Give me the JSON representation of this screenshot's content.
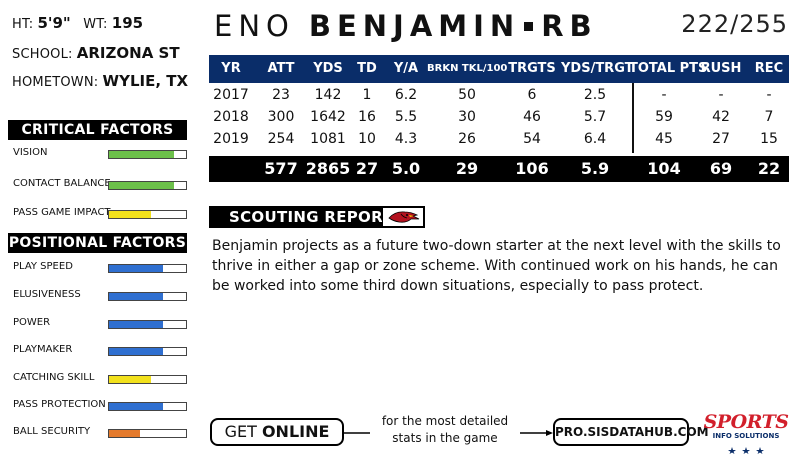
{
  "bio": {
    "ht_label": "HT:",
    "ht_value": "5'9\"",
    "wt_label": "WT:",
    "wt_value": "195",
    "school_label": "SCHOOL:",
    "school_value": "ARIZONA ST",
    "hometown_label": "HOMETOWN:",
    "hometown_value": "WYLIE, TX"
  },
  "player": {
    "first": "ENO",
    "last": "BENJAMIN",
    "position": "RB",
    "rank": "222/255"
  },
  "stats": {
    "headers": [
      "YR",
      "ATT",
      "YDS",
      "TD",
      "Y/A",
      "BRKN TKL/100",
      "TRGTS",
      "YDS/TRGT",
      "TOTAL PTS",
      "RUSH",
      "REC"
    ],
    "rows": [
      [
        "2017",
        "23",
        "142",
        "1",
        "6.2",
        "50",
        "6",
        "2.5",
        "-",
        "-",
        "-"
      ],
      [
        "2018",
        "300",
        "1642",
        "16",
        "5.5",
        "30",
        "46",
        "5.7",
        "59",
        "42",
        "7"
      ],
      [
        "2019",
        "254",
        "1081",
        "10",
        "4.3",
        "26",
        "54",
        "6.4",
        "45",
        "27",
        "15"
      ]
    ],
    "totals": [
      "",
      "577",
      "2865",
      "27",
      "5.0",
      "29",
      "106",
      "5.9",
      "104",
      "69",
      "22"
    ]
  },
  "critical": {
    "title": "CRITICAL FACTORS",
    "items": [
      {
        "label": "VISION",
        "level": 0.85,
        "color": "#6cc04a"
      },
      {
        "label": "CONTACT BALANCE",
        "level": 0.85,
        "color": "#6cc04a"
      },
      {
        "label": "PASS GAME IMPACT",
        "level": 0.55,
        "color": "#f2e11c"
      }
    ]
  },
  "positional": {
    "title": "POSITIONAL FACTORS",
    "items": [
      {
        "label": "PLAY SPEED",
        "level": 0.7,
        "color": "#2f6fd0"
      },
      {
        "label": "ELUSIVENESS",
        "level": 0.7,
        "color": "#2f6fd0"
      },
      {
        "label": "POWER",
        "level": 0.7,
        "color": "#2f6fd0"
      },
      {
        "label": "PLAYMAKER",
        "level": 0.7,
        "color": "#2f6fd0"
      },
      {
        "label": "CATCHING SKILL",
        "level": 0.55,
        "color": "#f2e11c"
      },
      {
        "label": "PASS PROTECTION",
        "level": 0.7,
        "color": "#2f6fd0"
      },
      {
        "label": "BALL SECURITY",
        "level": 0.4,
        "color": "#e47a2c"
      }
    ]
  },
  "scouting": {
    "title": "SCOUTING REPORT",
    "logo_icon": "cardinals-logo-icon",
    "text": "Benjamin projects as a future two-down starter at the next level with the skills to thrive in either a gap or zone scheme.  With continued work on his hands, he can be worked into some third down situations, especially to pass protect."
  },
  "footer": {
    "get": "GET",
    "online": "ONLINE",
    "tagline_1": "for the most detailed",
    "tagline_2": "stats in the game",
    "url": "PRO.SISDATAHUB.COM",
    "brand": "SPORTS",
    "brand_sub": "INFO SOLUTIONS"
  },
  "colors": {
    "header_navy": "#0a2d69",
    "brand_red": "#d21f2b"
  }
}
